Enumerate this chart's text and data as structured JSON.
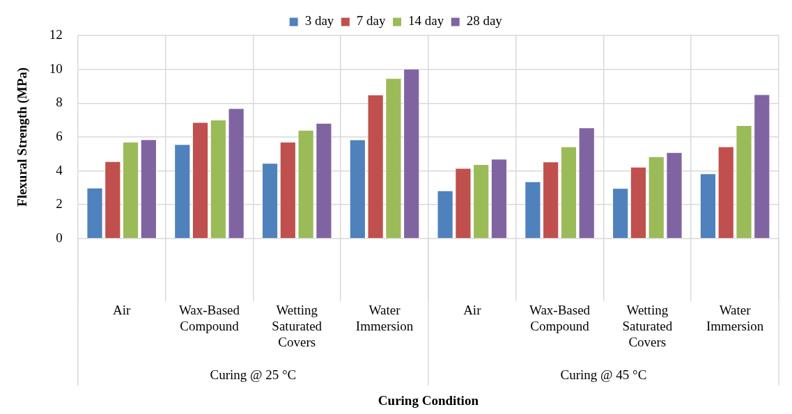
{
  "chart_data": {
    "type": "bar",
    "xlabel": "Curing Condition",
    "ylabel": "Flexural Strength (MPa)",
    "categories": [
      "Air",
      "Wax-Based Compound",
      "Wetting Saturated Covers",
      "Water Immersion",
      "Air",
      "Wax-Based Compound",
      "Wetting Saturated Covers",
      "Water Immersion"
    ],
    "series": [
      {
        "name": "3 day",
        "color": "#4f81bd",
        "values": [
          3.0,
          5.57,
          4.46,
          5.85,
          2.84,
          3.37,
          2.98,
          3.85
        ]
      },
      {
        "name": "7 day",
        "color": "#c0504d",
        "values": [
          4.57,
          6.88,
          5.72,
          8.5,
          4.17,
          4.55,
          4.24,
          5.44
        ]
      },
      {
        "name": "14 day",
        "color": "#9bbb59",
        "values": [
          5.72,
          7.02,
          6.42,
          9.48,
          4.39,
          5.44,
          4.85,
          6.69
        ]
      },
      {
        "name": "28 day",
        "color": "#8064a2",
        "values": [
          5.86,
          7.7,
          6.83,
          10.04,
          4.71,
          6.56,
          5.1,
          8.52
        ]
      }
    ],
    "annotations": [
      "Curing @ 25 °C",
      "Curing @ 45 °C"
    ],
    "ylim": [
      0,
      12
    ],
    "yticks": [
      0,
      2,
      4,
      6,
      8,
      10,
      12
    ],
    "grid": true,
    "legend": "top"
  }
}
